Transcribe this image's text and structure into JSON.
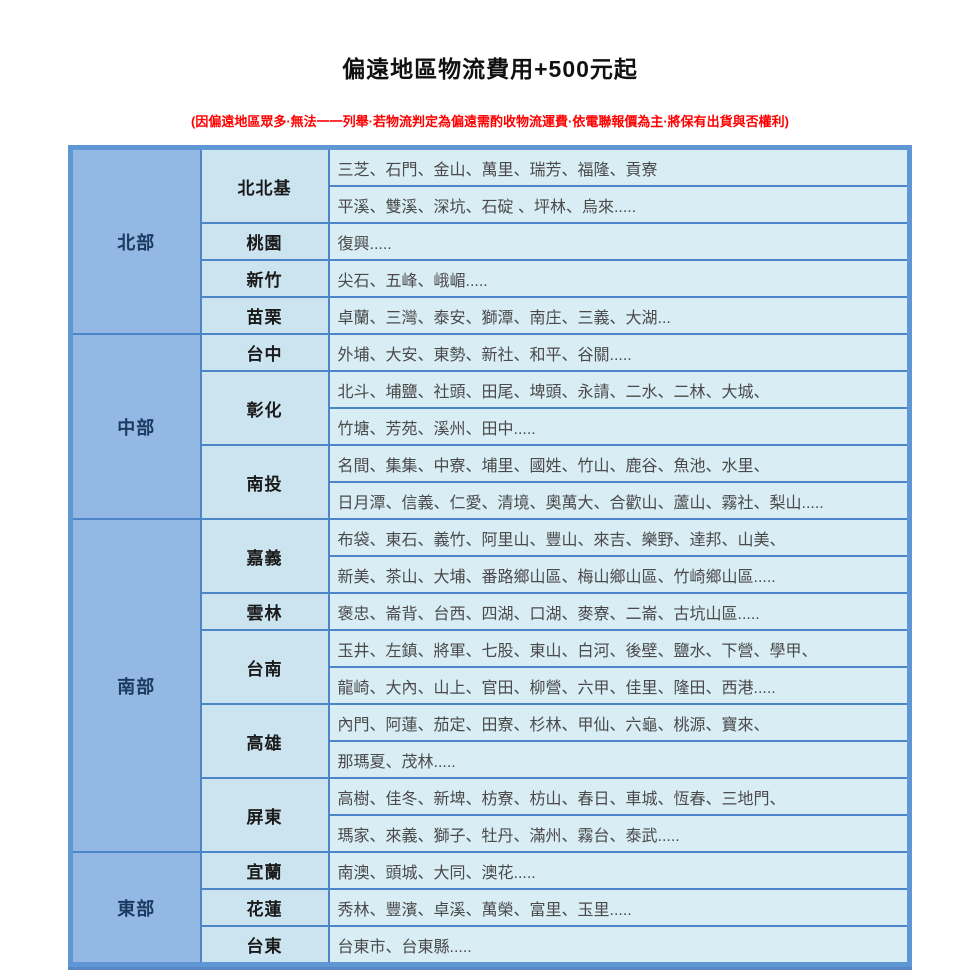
{
  "title": "偏遠地區物流費用+500元起",
  "note": "(因偏遠地區眾多·無法一一列舉·若物流判定為偏遠需酌收物流運費·依電聯報價為主·將保有出貨與否權利)",
  "colors": {
    "frame": "#5e97d3",
    "grid": "#4d86c8",
    "region-bg": "#93b8e3",
    "county-bg": "#cce4ef",
    "district-bg": "#d9edf5",
    "region-text": "#1c3a60",
    "county-text": "#1a1a1a",
    "district-text": "#4a4a4a",
    "note-color": "#ff0000",
    "title-color": "#111111"
  },
  "table": {
    "regions": [
      {
        "name": "北部",
        "counties": [
          {
            "name": "北北基",
            "lines": [
              "三芝、石門、金山、萬里、瑞芳、福隆、貢寮",
              "平溪、雙溪、深坑、石碇 、坪林、烏來....."
            ]
          },
          {
            "name": "桃園",
            "lines": [
              "復興....."
            ]
          },
          {
            "name": "新竹",
            "lines": [
              "尖石、五峰、峨嵋....."
            ]
          },
          {
            "name": "苗栗",
            "lines": [
              "卓蘭、三灣、泰安、獅潭、南庄、三義、大湖..."
            ]
          }
        ]
      },
      {
        "name": "中部",
        "counties": [
          {
            "name": "台中",
            "lines": [
              "外埔、大安、東勢、新社、和平、谷關....."
            ]
          },
          {
            "name": "彰化",
            "lines": [
              "北斗、埔鹽、社頭、田尾、埤頭、永請、二水、二林、大城、",
              "竹塘、芳苑、溪州、田中....."
            ]
          },
          {
            "name": "南投",
            "lines": [
              "名間、集集、中寮、埔里、國姓、竹山、鹿谷、魚池、水里、",
              "日月潭、信義、仁愛、清境、奧萬大、合歡山、蘆山、霧社、梨山....."
            ]
          }
        ]
      },
      {
        "name": "南部",
        "counties": [
          {
            "name": "嘉義",
            "lines": [
              "布袋、東石、義竹、阿里山、豐山、來吉、樂野、達邦、山美、",
              "新美、茶山、大埔、番路鄉山區、梅山鄉山區、竹崎鄉山區....."
            ]
          },
          {
            "name": "雲林",
            "lines": [
              "褒忠、崙背、台西、四湖、口湖、麥寮、二崙、古坑山區....."
            ]
          },
          {
            "name": "台南",
            "lines": [
              "玉井、左鎮、將軍、七股、東山、白河、後壁、鹽水、下營、學甲、",
              "龍崎、大內、山上、官田、柳營、六甲、佳里、隆田、西港....."
            ]
          },
          {
            "name": "高雄",
            "lines": [
              "內門、阿蓮、茄定、田寮、杉林、甲仙、六龜、桃源、寶來、",
              "那瑪夏、茂林....."
            ]
          },
          {
            "name": "屏東",
            "lines": [
              "高樹、佳冬、新埤、枋寮、枋山、春日、車城、恆春、三地門、",
              "瑪家、來義、獅子、牡丹、滿州、霧台、泰武....."
            ]
          }
        ]
      },
      {
        "name": "東部",
        "counties": [
          {
            "name": "宜蘭",
            "lines": [
              "南澳、頭城、大同、澳花....."
            ]
          },
          {
            "name": "花蓮",
            "lines": [
              "秀林、豐濱、卓溪、萬榮、富里、玉里....."
            ]
          },
          {
            "name": "台東",
            "lines": [
              "台東市、台東縣....."
            ]
          }
        ]
      }
    ]
  }
}
